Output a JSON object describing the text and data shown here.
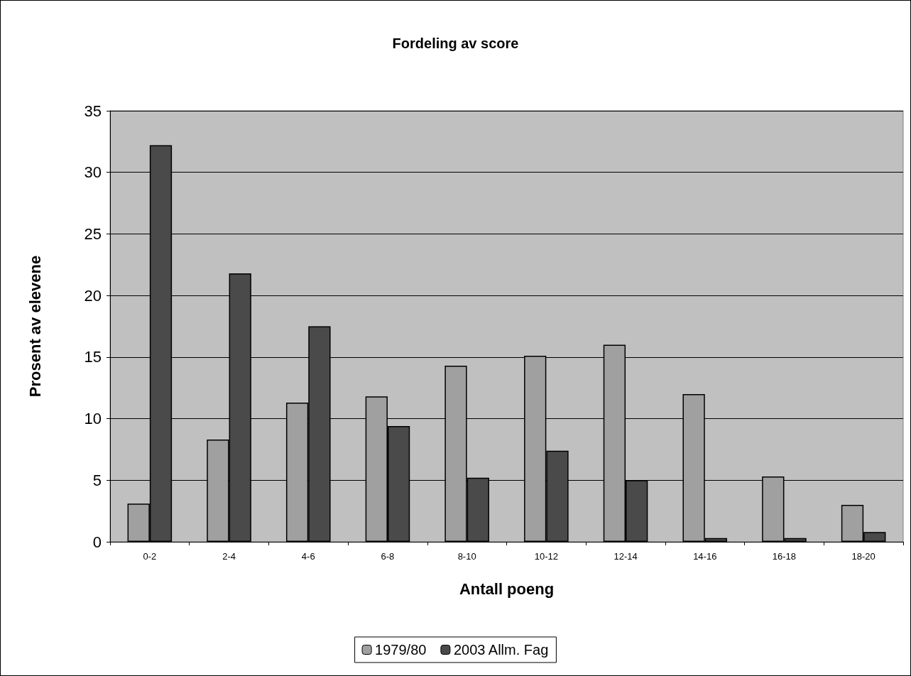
{
  "chart_data": {
    "type": "bar",
    "title": "Fordeling av score",
    "xlabel": "Antall poeng",
    "ylabel": "Prosent av elevene",
    "categories": [
      "0-2",
      "2-4",
      "4-6",
      "6-8",
      "8-10",
      "10-12",
      "12-14",
      "14-16",
      "16-18",
      "18-20"
    ],
    "series": [
      {
        "name": "1979/80",
        "color": "#a0a0a0",
        "values": [
          3.1,
          8.3,
          11.3,
          11.8,
          14.3,
          15.1,
          16.0,
          12.0,
          5.3,
          3.0
        ]
      },
      {
        "name": "2003 Allm. Fag",
        "color": "#4a4a4a",
        "values": [
          32.2,
          21.8,
          17.5,
          9.4,
          5.2,
          7.4,
          5.0,
          0.3,
          0.3,
          0.8
        ]
      }
    ],
    "ylim": [
      0,
      35
    ],
    "yticks": [
      0,
      5,
      10,
      15,
      20,
      25,
      30,
      35
    ],
    "grid": "y",
    "legend": "bottom"
  }
}
